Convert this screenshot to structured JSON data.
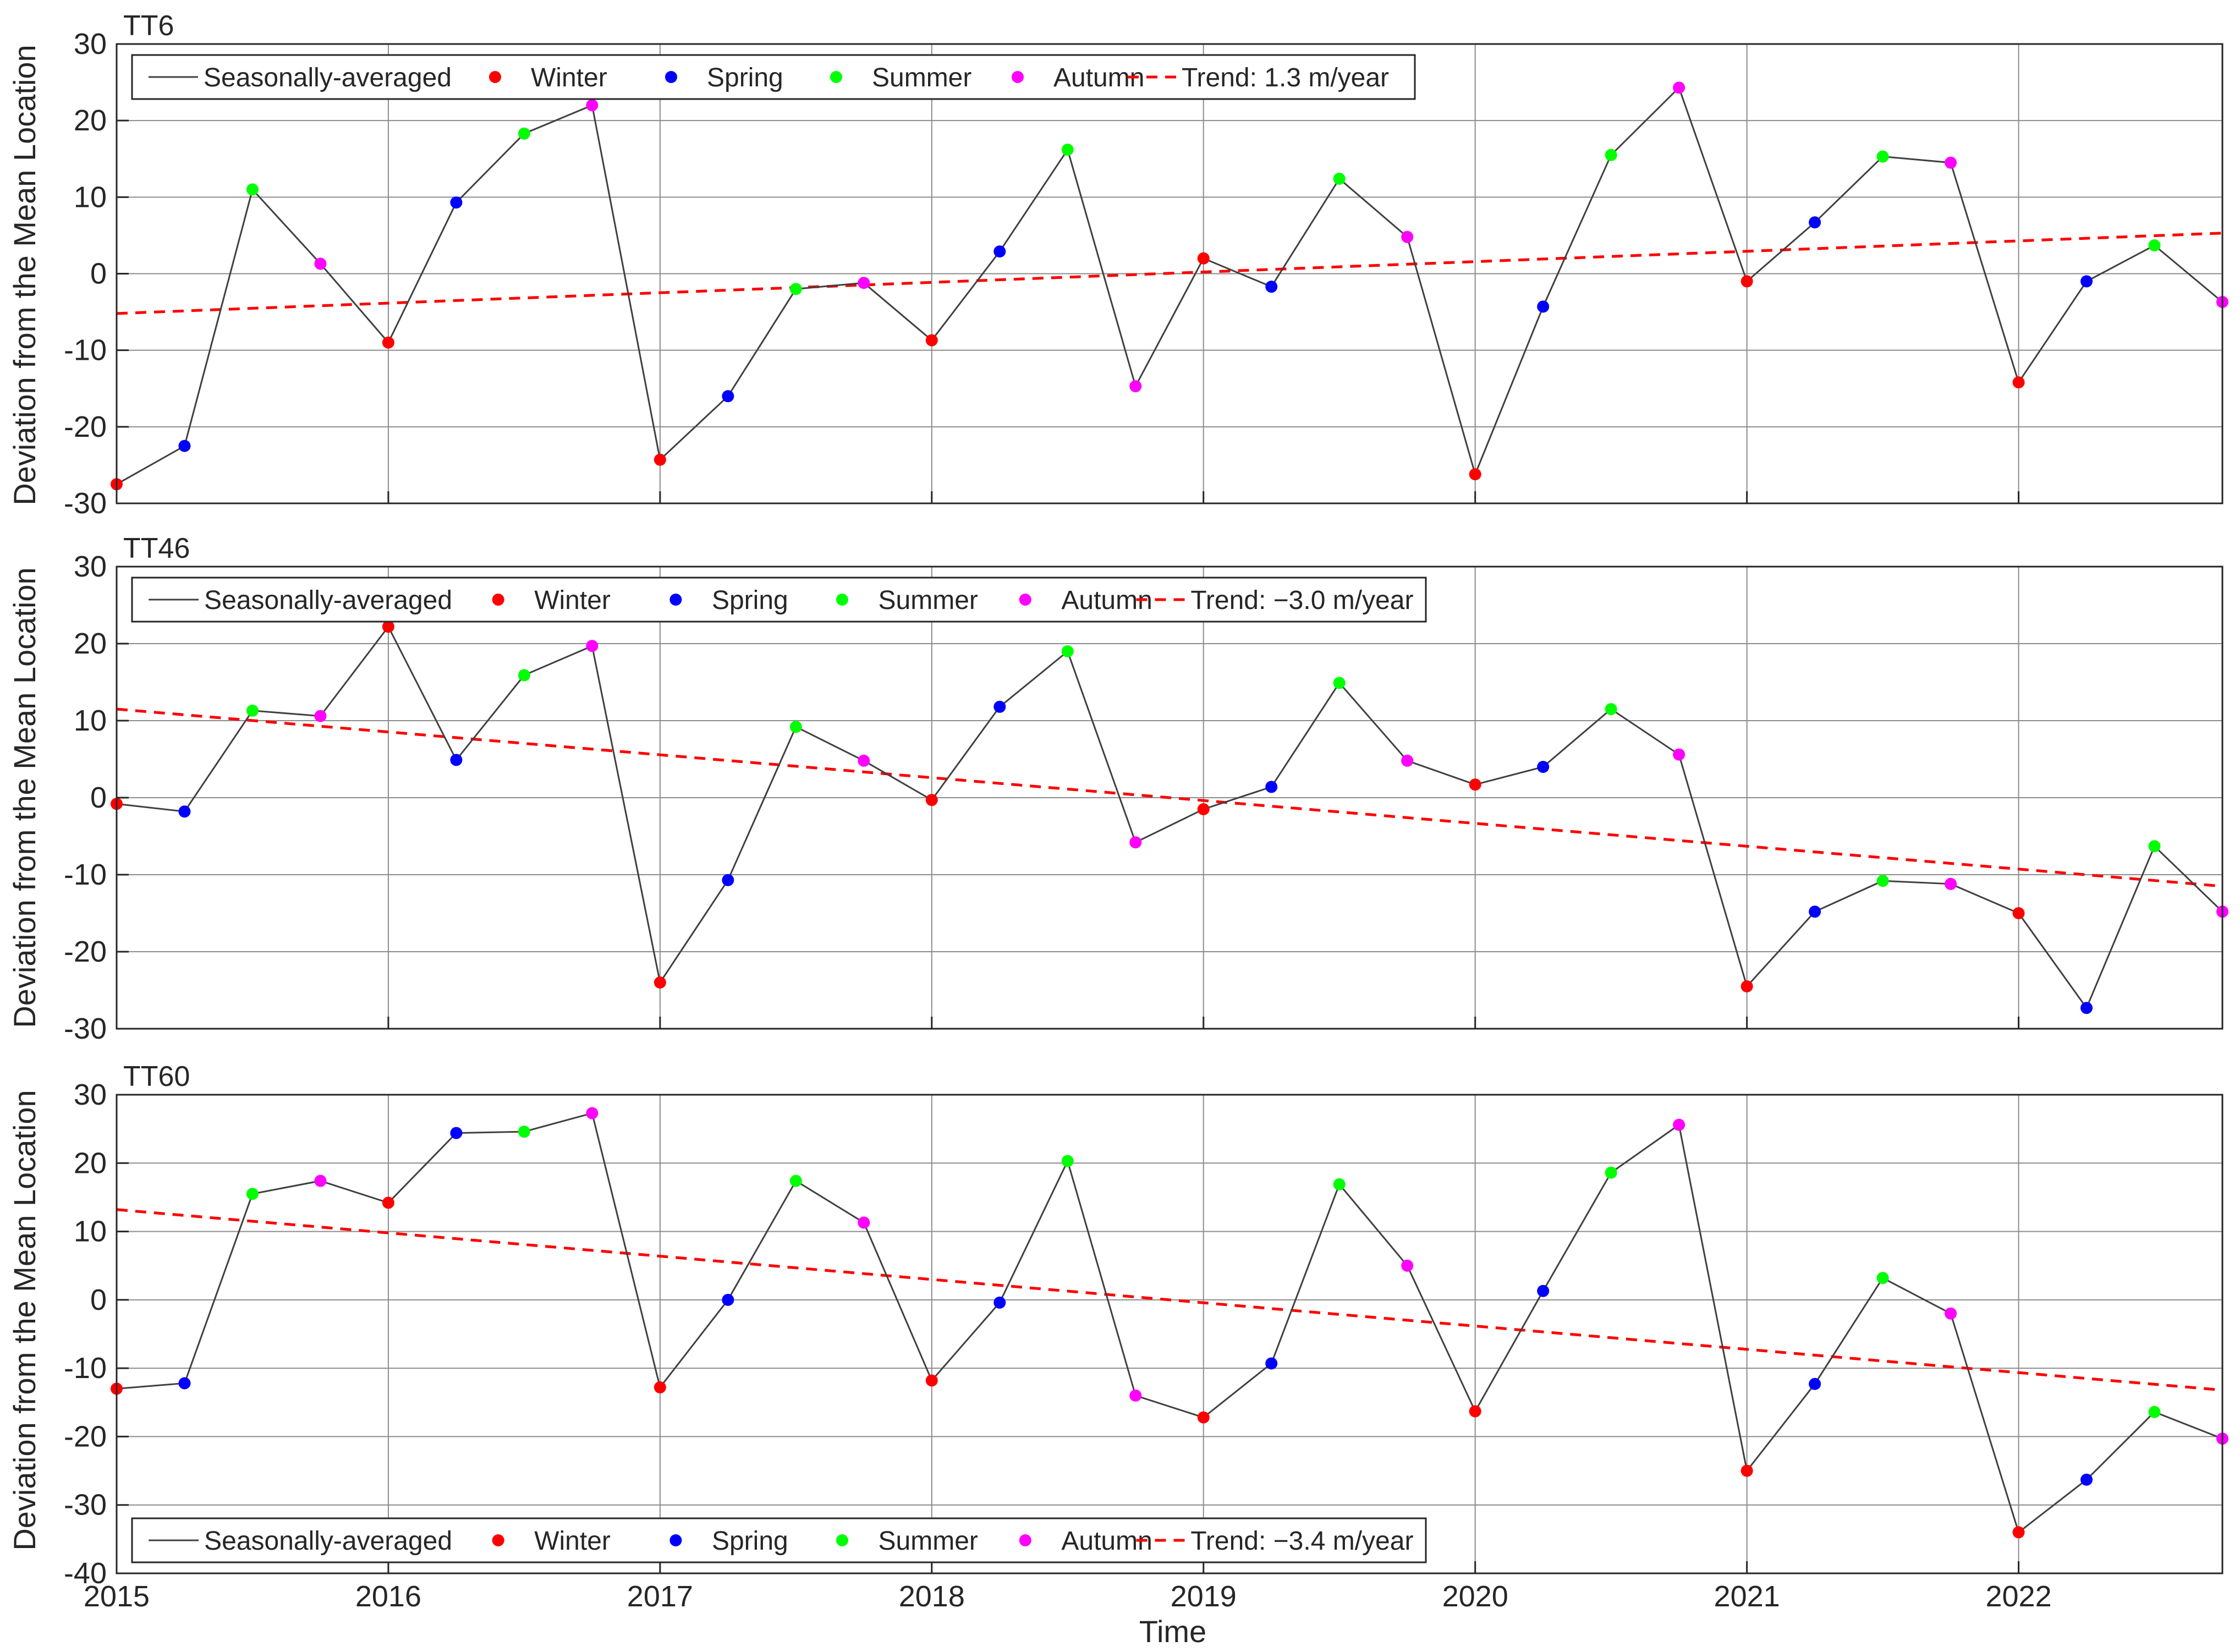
{
  "figure": {
    "xlabel": "Time",
    "ylabel": "Deviation from the Mean Location"
  },
  "colors": {
    "line": "#404040",
    "trend": "#ff0000",
    "Winter": "#ff0000",
    "Spring": "#0000ff",
    "Summer": "#00ff00",
    "Autumn": "#ff00ff"
  },
  "chart_data": [
    {
      "type": "line",
      "title": "TT6",
      "x": [
        2015.0,
        2015.25,
        2015.5,
        2015.75,
        2016.0,
        2016.25,
        2016.5,
        2016.75,
        2017.0,
        2017.25,
        2017.5,
        2017.75,
        2018.0,
        2018.25,
        2018.5,
        2018.75,
        2019.0,
        2019.25,
        2019.5,
        2019.75,
        2020.0,
        2020.25,
        2020.5,
        2020.75,
        2021.0,
        2021.25,
        2021.5,
        2021.75,
        2022.0,
        2022.25,
        2022.5,
        2022.75
      ],
      "y": [
        -27.5,
        -22.5,
        11,
        1.3,
        -9,
        9.3,
        18.3,
        22,
        -24.3,
        -16,
        -2,
        -1.2,
        -8.7,
        2.9,
        16.2,
        -14.7,
        2,
        -1.7,
        12.4,
        4.8,
        -26.2,
        -4.3,
        15.5,
        24.3,
        -1,
        6.7,
        15.3,
        14.5,
        -14.2,
        -1,
        3.7,
        -3.7
      ],
      "seasons": [
        "Winter",
        "Spring",
        "Summer",
        "Autumn",
        "Winter",
        "Spring",
        "Summer",
        "Autumn",
        "Winter",
        "Spring",
        "Summer",
        "Autumn",
        "Winter",
        "Spring",
        "Summer",
        "Autumn",
        "Winter",
        "Spring",
        "Summer",
        "Autumn",
        "Winter",
        "Spring",
        "Summer",
        "Autumn",
        "Winter",
        "Spring",
        "Summer",
        "Autumn",
        "Winter",
        "Spring",
        "Summer",
        "Autumn"
      ],
      "trend": {
        "x": [
          2015,
          2022.75
        ],
        "y": [
          -5.2,
          5.3
        ]
      },
      "xlim": [
        2015,
        2022.75
      ],
      "ylim": [
        -30,
        30
      ],
      "yticks": [
        -30,
        -20,
        -10,
        0,
        10,
        20,
        30
      ],
      "xticks": [
        2015,
        2016,
        2017,
        2018,
        2019,
        2020,
        2021,
        2022
      ],
      "xticklabels": [
        "2015",
        "2016",
        "2017",
        "2018",
        "2019",
        "2020",
        "2021",
        "2022"
      ],
      "grid": true,
      "legend_position": "top-left",
      "legend": [
        "Seasonally-averaged",
        "Winter",
        "Spring",
        "Summer",
        "Autumn",
        "Trend: 1.3 m/year"
      ]
    },
    {
      "type": "line",
      "title": "TT46",
      "x": [
        2015.0,
        2015.25,
        2015.5,
        2015.75,
        2016.0,
        2016.25,
        2016.5,
        2016.75,
        2017.0,
        2017.25,
        2017.5,
        2017.75,
        2018.0,
        2018.25,
        2018.5,
        2018.75,
        2019.0,
        2019.25,
        2019.5,
        2019.75,
        2020.0,
        2020.25,
        2020.5,
        2020.75,
        2021.0,
        2021.25,
        2021.5,
        2021.75,
        2022.0,
        2022.25,
        2022.5,
        2022.75
      ],
      "y": [
        -0.8,
        -1.8,
        11.3,
        10.6,
        22.2,
        4.9,
        15.9,
        19.7,
        -24,
        -10.7,
        9.2,
        4.8,
        -0.3,
        11.8,
        19,
        -5.8,
        -1.5,
        1.4,
        14.9,
        4.8,
        1.7,
        4,
        11.5,
        5.6,
        -24.5,
        -14.8,
        -10.8,
        -11.2,
        -15,
        -27.3,
        -6.3,
        -14.8
      ],
      "seasons": [
        "Winter",
        "Spring",
        "Summer",
        "Autumn",
        "Winter",
        "Spring",
        "Summer",
        "Autumn",
        "Winter",
        "Spring",
        "Summer",
        "Autumn",
        "Winter",
        "Spring",
        "Summer",
        "Autumn",
        "Winter",
        "Spring",
        "Summer",
        "Autumn",
        "Winter",
        "Spring",
        "Summer",
        "Autumn",
        "Winter",
        "Spring",
        "Summer",
        "Autumn",
        "Winter",
        "Spring",
        "Summer",
        "Autumn"
      ],
      "trend": {
        "x": [
          2015,
          2022.75
        ],
        "y": [
          11.5,
          -11.5
        ]
      },
      "xlim": [
        2015,
        2022.75
      ],
      "ylim": [
        -30,
        30
      ],
      "yticks": [
        -30,
        -20,
        -10,
        0,
        10,
        20,
        30
      ],
      "xticks": [
        2015,
        2016,
        2017,
        2018,
        2019,
        2020,
        2021,
        2022
      ],
      "xticklabels": [
        "2015",
        "2016",
        "2017",
        "2018",
        "2019",
        "2020",
        "2021",
        "2022"
      ],
      "grid": true,
      "legend_position": "top-left",
      "legend": [
        "Seasonally-averaged",
        "Winter",
        "Spring",
        "Summer",
        "Autumn",
        "Trend: −3.0 m/year"
      ]
    },
    {
      "type": "line",
      "title": "TT60",
      "x": [
        2015.0,
        2015.25,
        2015.5,
        2015.75,
        2016.0,
        2016.25,
        2016.5,
        2016.75,
        2017.0,
        2017.25,
        2017.5,
        2017.75,
        2018.0,
        2018.25,
        2018.5,
        2018.75,
        2019.0,
        2019.25,
        2019.5,
        2019.75,
        2020.0,
        2020.25,
        2020.5,
        2020.75,
        2021.0,
        2021.25,
        2021.5,
        2021.75,
        2022.0,
        2022.25,
        2022.5,
        2022.75
      ],
      "y": [
        -13,
        -12.2,
        15.5,
        17.4,
        14.2,
        24.4,
        24.6,
        27.3,
        -12.8,
        0,
        17.4,
        11.3,
        -11.8,
        -0.4,
        20.3,
        -14,
        -17.2,
        -9.3,
        16.9,
        5,
        -16.3,
        1.3,
        18.6,
        25.6,
        -25,
        -12.3,
        3.2,
        -2,
        -34,
        -26.3,
        -16.4,
        -20.3
      ],
      "seasons": [
        "Winter",
        "Spring",
        "Summer",
        "Autumn",
        "Winter",
        "Spring",
        "Summer",
        "Autumn",
        "Winter",
        "Spring",
        "Summer",
        "Autumn",
        "Winter",
        "Spring",
        "Summer",
        "Autumn",
        "Winter",
        "Spring",
        "Summer",
        "Autumn",
        "Winter",
        "Spring",
        "Summer",
        "Autumn",
        "Winter",
        "Spring",
        "Summer",
        "Autumn",
        "Winter",
        "Spring",
        "Summer",
        "Autumn"
      ],
      "trend": {
        "x": [
          2015,
          2022.75
        ],
        "y": [
          13.2,
          -13.2
        ]
      },
      "xlim": [
        2015,
        2022.75
      ],
      "ylim": [
        -40,
        30
      ],
      "yticks": [
        -40,
        -30,
        -20,
        -10,
        0,
        10,
        20,
        30
      ],
      "xticks": [
        2015,
        2016,
        2017,
        2018,
        2019,
        2020,
        2021,
        2022
      ],
      "xticklabels": [
        "2015",
        "2016",
        "2017",
        "2018",
        "2019",
        "2020",
        "2021",
        "2022"
      ],
      "grid": true,
      "legend_position": "bottom-left",
      "legend": [
        "Seasonally-averaged",
        "Winter",
        "Spring",
        "Summer",
        "Autumn",
        "Trend: −3.4 m/year"
      ]
    }
  ]
}
